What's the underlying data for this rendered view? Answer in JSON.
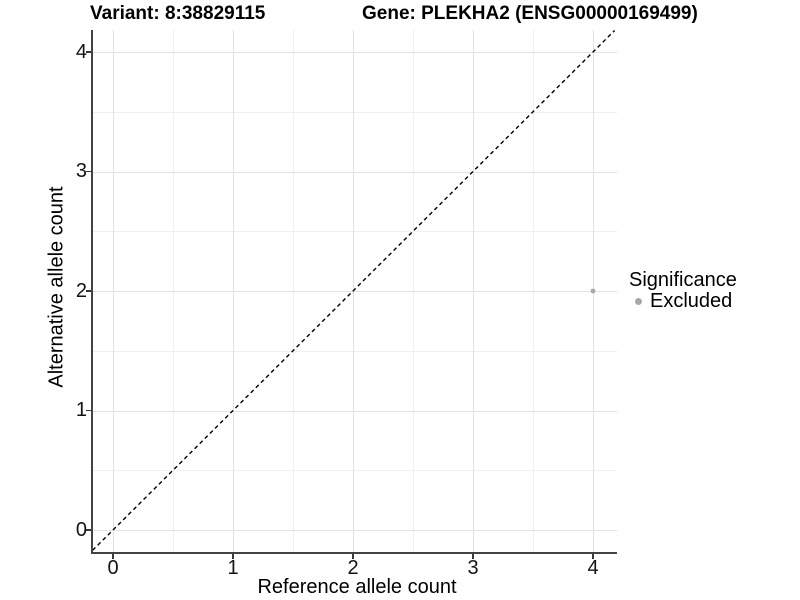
{
  "header": {
    "variant_title": "Variant: 8:38829115",
    "gene_title": "Gene: PLEKHA2 (ENSG00000169499)"
  },
  "chart_data": {
    "type": "scatter",
    "xlabel": "Reference allele count",
    "ylabel": "Alternative allele count",
    "x_ticks": [
      0,
      1,
      2,
      3,
      4
    ],
    "y_ticks": [
      0,
      1,
      2,
      3,
      4
    ],
    "xlim": [
      -0.17,
      4.2
    ],
    "ylim": [
      -0.18,
      4.18
    ],
    "grid": "major and minor gridlines on white background",
    "points": [
      {
        "x": 4,
        "y": 2,
        "significance": "Excluded",
        "color": "#a9a9a9"
      }
    ],
    "identity_line": {
      "style": "dashed",
      "color": "#000000",
      "from": [
        -0.17,
        -0.17
      ],
      "to": [
        4.18,
        4.18
      ]
    },
    "legend": {
      "title": "Significance",
      "position": "right",
      "items": [
        {
          "label": "Excluded",
          "color": "#a8a8a8"
        }
      ]
    }
  },
  "colors": {
    "background": "#ffffff",
    "major_grid": "#e2e2e2",
    "minor_grid": "#f0f0f0",
    "axis_line": "#434343",
    "tick": "#373737",
    "text": "#000000"
  }
}
